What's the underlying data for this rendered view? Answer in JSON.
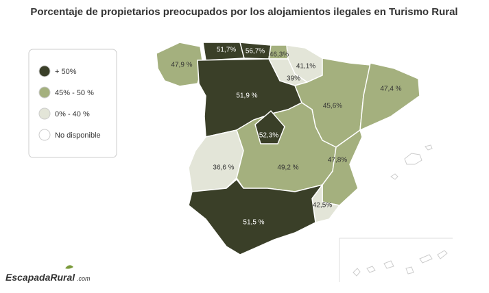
{
  "title": "Porcentaje de propietarios preocupados por los alojamientos ilegales en Turismo Rural",
  "legend": [
    {
      "label": "+ 50%",
      "color": "#3a3f28"
    },
    {
      "label": "45% - 50 %",
      "color": "#a4b07e"
    },
    {
      "label": "0% - 40 %",
      "color": "#e3e5d8"
    },
    {
      "label": "No disponible",
      "color": "#ffffff"
    }
  ],
  "regions": [
    {
      "label": "47,9 %",
      "color": "#a4b07e"
    },
    {
      "label": "51,7%",
      "color": "#3a3f28"
    },
    {
      "label": "56,7%",
      "color": "#3a3f28"
    },
    {
      "label": "46,3%",
      "color": "#a4b07e"
    },
    {
      "label": "41,1%",
      "color": "#e3e5d8"
    },
    {
      "label": "39%",
      "color": "#e3e5d8"
    },
    {
      "label": "51,9 %",
      "color": "#3a3f28"
    },
    {
      "label": "45,6%",
      "color": "#a4b07e"
    },
    {
      "label": "47,4 %",
      "color": "#a4b07e"
    },
    {
      "label": "36,6 %",
      "color": "#e3e5d8"
    },
    {
      "label": "49,2 %",
      "color": "#a4b07e"
    },
    {
      "label": "52,3%",
      "color": "#3a3f28"
    },
    {
      "label": "47,8%",
      "color": "#a4b07e"
    },
    {
      "label": "42,5%",
      "color": "#e3e5d8"
    },
    {
      "label": "51,5 %",
      "color": "#3a3f28"
    }
  ],
  "logo": {
    "name": "EscapadaRural",
    "suffix": ".com"
  }
}
